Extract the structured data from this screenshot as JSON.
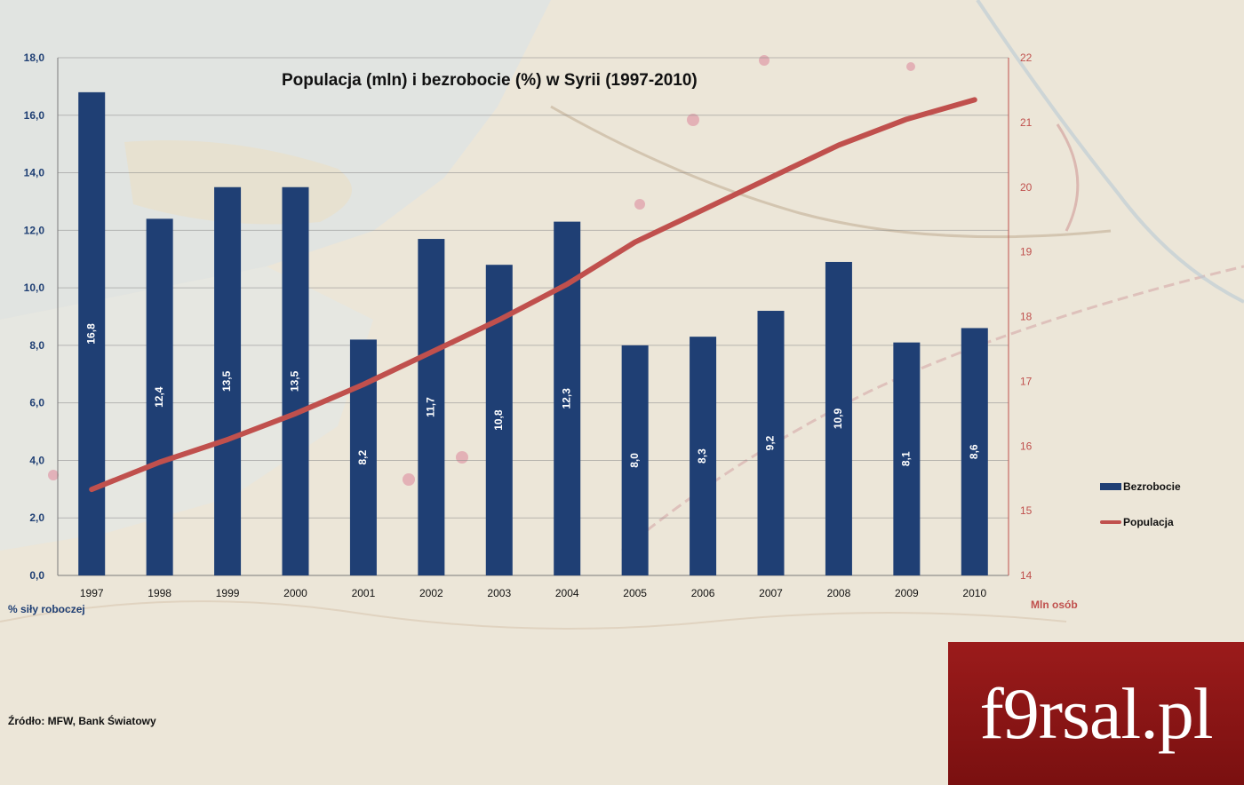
{
  "chart_data": {
    "type": "bar",
    "title": "Populacja (mln) i bezrobocie (%) w Syrii (1997-2010)",
    "categories": [
      "1997",
      "1998",
      "1999",
      "2000",
      "2001",
      "2002",
      "2003",
      "2004",
      "2005",
      "2006",
      "2007",
      "2008",
      "2009",
      "2010"
    ],
    "series": [
      {
        "name": "Bezrobocie",
        "type": "bar",
        "axis": "left",
        "color": "#1f3f74",
        "values": [
          16.8,
          12.4,
          13.5,
          13.5,
          8.2,
          11.7,
          10.8,
          12.3,
          8.0,
          8.3,
          9.2,
          10.9,
          8.1,
          8.6
        ],
        "labels": [
          "16,8",
          "12,4",
          "13,5",
          "13,5",
          "8,2",
          "11,7",
          "10,8",
          "12,3",
          "8,0",
          "8,3",
          "9,2",
          "10,9",
          "8,1",
          "8,6"
        ]
      },
      {
        "name": "Populacja",
        "type": "line",
        "axis": "right",
        "color": "#c0504d",
        "values": [
          15.33,
          15.75,
          16.1,
          16.5,
          16.95,
          17.45,
          17.95,
          18.5,
          19.15,
          19.65,
          20.15,
          20.65,
          21.05,
          21.35
        ]
      }
    ],
    "y_left": {
      "label": "% siły roboczej",
      "ylim": [
        0,
        18
      ],
      "ticks": [
        "0,0",
        "2,0",
        "4,0",
        "6,0",
        "8,0",
        "10,0",
        "12,0",
        "14,0",
        "16,0",
        "18,0"
      ],
      "color": "#1f3f74"
    },
    "y_right": {
      "label": "Mln osób",
      "ylim": [
        14,
        22
      ],
      "ticks": [
        "14",
        "15",
        "16",
        "17",
        "18",
        "19",
        "20",
        "21",
        "22"
      ],
      "color": "#c0504d"
    },
    "grid": true,
    "legend": "right"
  },
  "source_text": "Źródło: MFW, Bank Światowy",
  "logo_text": "f9rsal.pl"
}
